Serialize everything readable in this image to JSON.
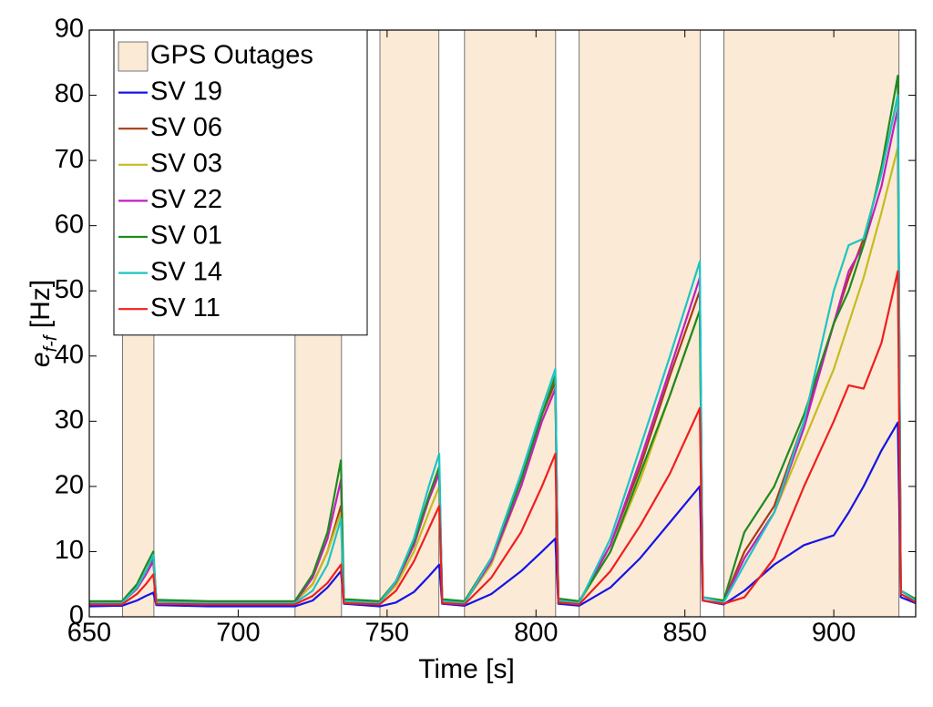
{
  "chart_data": {
    "type": "line",
    "xlabel": "Time [s]",
    "ylabel": {
      "base": "e",
      "subscript": "f-f",
      "rest": " [Hz]"
    },
    "xlim": [
      650,
      927.5
    ],
    "ylim": [
      0,
      90
    ],
    "xticks": [
      650,
      700,
      750,
      800,
      850,
      900
    ],
    "yticks": [
      0,
      10,
      20,
      30,
      40,
      50,
      60,
      70,
      80,
      90
    ],
    "legend_position": "upper left",
    "outage_label": "GPS Outages",
    "outage_color": "#fbead6",
    "outages": [
      [
        661.2,
        671.7
      ],
      [
        719.1,
        734.7
      ],
      [
        747.6,
        767.4
      ],
      [
        776,
        806.6
      ],
      [
        814.5,
        855.2
      ],
      [
        863.1,
        921.9
      ]
    ],
    "x": [
      650,
      661,
      666,
      669,
      671.5,
      672.5,
      690,
      719,
      725,
      730,
      734.5,
      735.5,
      747.5,
      753,
      759,
      764,
      767.5,
      768.5,
      776,
      785,
      795,
      802,
      806.5,
      807.5,
      814.5,
      825,
      835,
      845,
      855,
      856,
      863,
      870,
      880,
      890,
      900,
      905,
      910,
      916,
      921.5,
      922.5,
      928
    ],
    "series": [
      {
        "name": "SV 19",
        "color": "#1414e6",
        "values": [
          1.6,
          1.7,
          2.5,
          3.2,
          3.7,
          1.8,
          1.6,
          1.6,
          2.5,
          4.5,
          7,
          2.0,
          1.6,
          2.2,
          3.8,
          6.2,
          8,
          2.0,
          1.7,
          3.5,
          7,
          10,
          12,
          2.0,
          1.7,
          4.5,
          9,
          14.5,
          20,
          2.5,
          1.9,
          4,
          8,
          11,
          12.5,
          16,
          20,
          25.5,
          29.8,
          3,
          2
        ]
      },
      {
        "name": "SV 06",
        "color": "#a63c12",
        "values": [
          2.3,
          2.3,
          4.6,
          7,
          9,
          2.5,
          2.3,
          2.3,
          5,
          10,
          17,
          2.6,
          2.3,
          5.3,
          11,
          18,
          22,
          2.6,
          2.3,
          9,
          21,
          31,
          36,
          2.7,
          2.3,
          11,
          23,
          37,
          50,
          3,
          2.4,
          10,
          17,
          30,
          45,
          52,
          58,
          68,
          80,
          4,
          2.5
        ]
      },
      {
        "name": "SV 03",
        "color": "#c4bc1e",
        "values": [
          2.2,
          2.2,
          4.3,
          6.5,
          8.5,
          2.4,
          2.2,
          2.2,
          5,
          10,
          16,
          2.5,
          2.2,
          4.8,
          10,
          16,
          20,
          2.5,
          2.2,
          8,
          20,
          30,
          35,
          2.6,
          2.2,
          10,
          21,
          34,
          47,
          3,
          2.3,
          9,
          16,
          27,
          38,
          45,
          52,
          62,
          72,
          4,
          2.4
        ]
      },
      {
        "name": "SV 22",
        "color": "#c21ec2",
        "values": [
          2.2,
          2.2,
          4.3,
          6.5,
          8.5,
          2.4,
          2.2,
          2.2,
          6,
          12,
          21,
          2.5,
          2.2,
          5.3,
          11,
          18,
          22,
          2.5,
          2.2,
          8.5,
          20,
          30,
          35,
          2.6,
          2.2,
          11,
          24,
          38,
          52,
          3,
          2.3,
          9,
          16,
          29,
          45,
          53,
          57,
          66,
          78,
          4,
          2.4
        ]
      },
      {
        "name": "SV 01",
        "color": "#1e8a1e",
        "values": [
          2.4,
          2.4,
          5,
          7.8,
          10,
          2.6,
          2.4,
          2.4,
          6.5,
          13,
          24,
          2.7,
          2.4,
          5.5,
          11.5,
          18.5,
          23,
          2.7,
          2.4,
          9,
          21,
          31,
          37,
          2.8,
          2.4,
          10,
          22,
          34,
          47,
          3,
          2.5,
          13,
          20,
          31,
          45,
          50,
          57,
          69,
          83,
          4,
          2.6
        ]
      },
      {
        "name": "SV 14",
        "color": "#1ec4c4",
        "values": [
          2.1,
          2.1,
          4.5,
          7,
          9.5,
          2.3,
          2.1,
          2.1,
          4,
          8,
          15,
          2.4,
          2.1,
          5.5,
          12,
          20,
          25,
          2.4,
          2.1,
          9,
          22,
          32,
          38,
          2.5,
          2.1,
          12,
          26,
          40,
          54.5,
          3,
          2.2,
          8,
          16,
          30,
          50,
          57,
          58,
          68,
          80,
          4,
          2.3
        ]
      },
      {
        "name": "SV 11",
        "color": "#f01e1e",
        "values": [
          1.9,
          1.9,
          3.5,
          5,
          6.5,
          2,
          1.9,
          1.9,
          3.2,
          5.2,
          8,
          2.1,
          1.9,
          4,
          8.5,
          13.5,
          17,
          2.1,
          1.9,
          6,
          13,
          20,
          25,
          2.2,
          1.9,
          7,
          14,
          22,
          32,
          2.5,
          2,
          3,
          9,
          20,
          30,
          35.5,
          35,
          42,
          53,
          3.5,
          2.1
        ]
      }
    ]
  }
}
